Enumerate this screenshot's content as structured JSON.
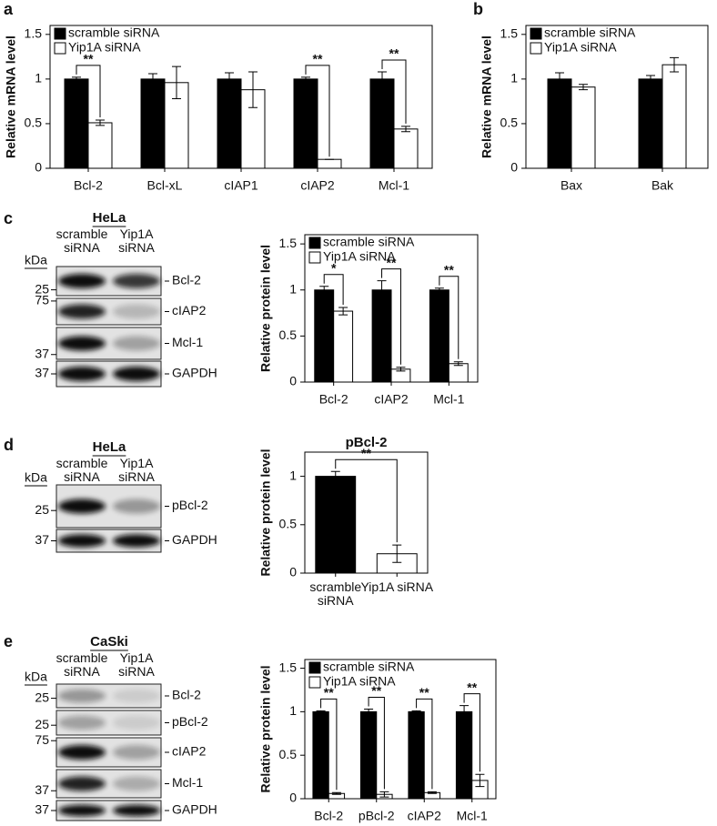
{
  "panel_labels": [
    "a",
    "b",
    "c",
    "d",
    "e"
  ],
  "chart_data": [
    {
      "type": "bar",
      "ylabel": "Relative mRNA level",
      "categories": [
        "Bcl-2",
        "Bcl-xL",
        "cIAP1",
        "cIAP2",
        "Mcl-1"
      ],
      "series": [
        {
          "name": "scramble siRNA",
          "color": "#000000",
          "values": [
            1,
            1,
            1,
            1,
            1
          ],
          "errors": [
            0.02,
            0.06,
            0.07,
            0.02,
            0.08
          ]
        },
        {
          "name": "Yip1A siRNA",
          "color": "#ffffff",
          "values": [
            0.51,
            0.96,
            0.88,
            0.1,
            0.44
          ],
          "errors": [
            0.03,
            0.18,
            0.2,
            0,
            0.03
          ]
        }
      ],
      "significance": [
        "**",
        null,
        null,
        "**",
        "**"
      ],
      "ylim": [
        0,
        1.6
      ],
      "yticks": [
        0,
        0.5,
        1,
        1.5
      ],
      "legend": "upper left"
    },
    {
      "type": "bar",
      "ylabel": "Relative mRNA level",
      "categories": [
        "Bax",
        "Bak"
      ],
      "series": [
        {
          "name": "scramble siRNA",
          "color": "#000000",
          "values": [
            1,
            1
          ],
          "errors": [
            0.07,
            0.04
          ]
        },
        {
          "name": "Yip1A siRNA",
          "color": "#ffffff",
          "values": [
            0.91,
            1.16
          ],
          "errors": [
            0.03,
            0.08
          ]
        }
      ],
      "ylim": [
        0,
        1.6
      ],
      "yticks": [
        0,
        0.5,
        1,
        1.5
      ],
      "legend": "upper left"
    },
    {
      "type": "bar",
      "ylabel": "Relative protein level",
      "categories": [
        "Bcl-2",
        "cIAP2",
        "Mcl-1"
      ],
      "series": [
        {
          "name": "scramble siRNA",
          "color": "#000000",
          "values": [
            1,
            1,
            1
          ],
          "errors": [
            0.04,
            0.1,
            0.02
          ]
        },
        {
          "name": "Yip1A siRNA",
          "color": "#ffffff",
          "values": [
            0.77,
            0.14,
            0.2
          ],
          "errors": [
            0.04,
            0.02,
            0.02
          ]
        }
      ],
      "significance": [
        "*",
        "**",
        "**"
      ],
      "ylim": [
        0,
        1.6
      ],
      "yticks": [
        0,
        0.5,
        1,
        1.5
      ],
      "legend": "upper left"
    },
    {
      "type": "bar",
      "title": "pBcl-2",
      "ylabel": "Relative protein level",
      "categories": [
        "scramble siRNA",
        "Yip1A siRNA"
      ],
      "values": [
        1,
        0.2
      ],
      "errors": [
        0.05,
        0.09
      ],
      "colors": [
        "#000000",
        "#ffffff"
      ],
      "significance": [
        "**"
      ],
      "ylim": [
        0,
        1.25
      ],
      "yticks": [
        0,
        0.5,
        1
      ]
    },
    {
      "type": "bar",
      "ylabel": "Relative protein level",
      "categories": [
        "Bcl-2",
        "pBcl-2",
        "cIAP2",
        "Mcl-1"
      ],
      "series": [
        {
          "name": "scramble siRNA",
          "color": "#000000",
          "values": [
            1,
            1,
            1,
            1
          ],
          "errors": [
            0.01,
            0.03,
            0.01,
            0.07
          ]
        },
        {
          "name": "Yip1A siRNA",
          "color": "#ffffff",
          "values": [
            0.06,
            0.05,
            0.07,
            0.21
          ],
          "errors": [
            0.01,
            0.03,
            0.01,
            0.07
          ]
        }
      ],
      "significance": [
        "**",
        "**",
        "**",
        "**"
      ],
      "ylim": [
        0,
        1.6
      ],
      "yticks": [
        0,
        0.5,
        1,
        1.5
      ],
      "legend": "upper left"
    }
  ],
  "blots": [
    {
      "cell": "HeLa",
      "kda": "kDa",
      "lanes": [
        "scramble siRNA",
        "Yip1A siRNA"
      ],
      "bands": [
        {
          "marker": "25",
          "label": "Bcl-2"
        },
        {
          "marker": "75",
          "label": "cIAP2"
        },
        {
          "marker": "37",
          "label": "Mcl-1"
        },
        {
          "marker": "37",
          "label": "GAPDH"
        }
      ]
    },
    {
      "cell": "HeLa",
      "kda": "kDa",
      "lanes": [
        "scramble siRNA",
        "Yip1A siRNA"
      ],
      "bands": [
        {
          "marker": "25",
          "label": "pBcl-2"
        },
        {
          "marker": "37",
          "label": "GAPDH"
        }
      ]
    },
    {
      "cell": "CaSki",
      "kda": "kDa",
      "lanes": [
        "scramble siRNA",
        "Yip1A siRNA"
      ],
      "bands": [
        {
          "marker": "25",
          "label": "Bcl-2"
        },
        {
          "marker": "25",
          "label": "pBcl-2"
        },
        {
          "marker": "75",
          "label": "cIAP2"
        },
        {
          "marker": "37",
          "label": "Mcl-1"
        },
        {
          "marker": "37",
          "label": "GAPDH"
        }
      ]
    }
  ]
}
